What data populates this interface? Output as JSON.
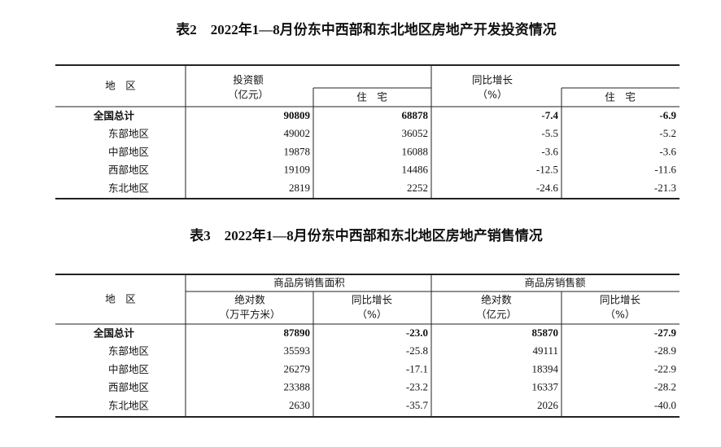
{
  "table2": {
    "title": "表2　2022年1—8月份东中西部和东北地区房地产开发投资情况",
    "header": {
      "region": "地　区",
      "investment": "投资额",
      "investment_unit": "（亿元）",
      "residential": "住　宅",
      "growth": "同比增长",
      "growth_unit": "（%）",
      "growth_residential": "住　宅"
    },
    "rows": [
      [
        "全国总计",
        "90809",
        "68878",
        "-7.4",
        "-6.9"
      ],
      [
        "东部地区",
        "49002",
        "36052",
        "-5.5",
        "-5.2"
      ],
      [
        "中部地区",
        "19878",
        "16088",
        "-3.6",
        "-3.6"
      ],
      [
        "西部地区",
        "19109",
        "14486",
        "-12.5",
        "-11.6"
      ],
      [
        "东北地区",
        "2819",
        "2252",
        "-24.6",
        "-21.3"
      ]
    ]
  },
  "table3": {
    "title": "表3　2022年1—8月份东中西部和东北地区房地产销售情况",
    "header": {
      "region": "地　区",
      "area": "商品房销售面积",
      "sales": "商品房销售额",
      "area_abs": "绝对数",
      "area_unit": "（万平方米）",
      "area_growth": "同比增长",
      "area_growth_unit": "（%）",
      "sales_abs": "绝对数",
      "sales_unit": "（亿元）",
      "sales_growth": "同比增长",
      "sales_growth_unit": "（%）"
    },
    "rows": [
      [
        "全国总计",
        "87890",
        "-23.0",
        "85870",
        "-27.9"
      ],
      [
        "东部地区",
        "35593",
        "-25.8",
        "49111",
        "-28.9"
      ],
      [
        "中部地区",
        "26279",
        "-17.1",
        "18394",
        "-22.9"
      ],
      [
        "西部地区",
        "23388",
        "-23.2",
        "16337",
        "-28.2"
      ],
      [
        "东北地区",
        "2630",
        "-35.7",
        "2026",
        "-40.0"
      ]
    ]
  }
}
